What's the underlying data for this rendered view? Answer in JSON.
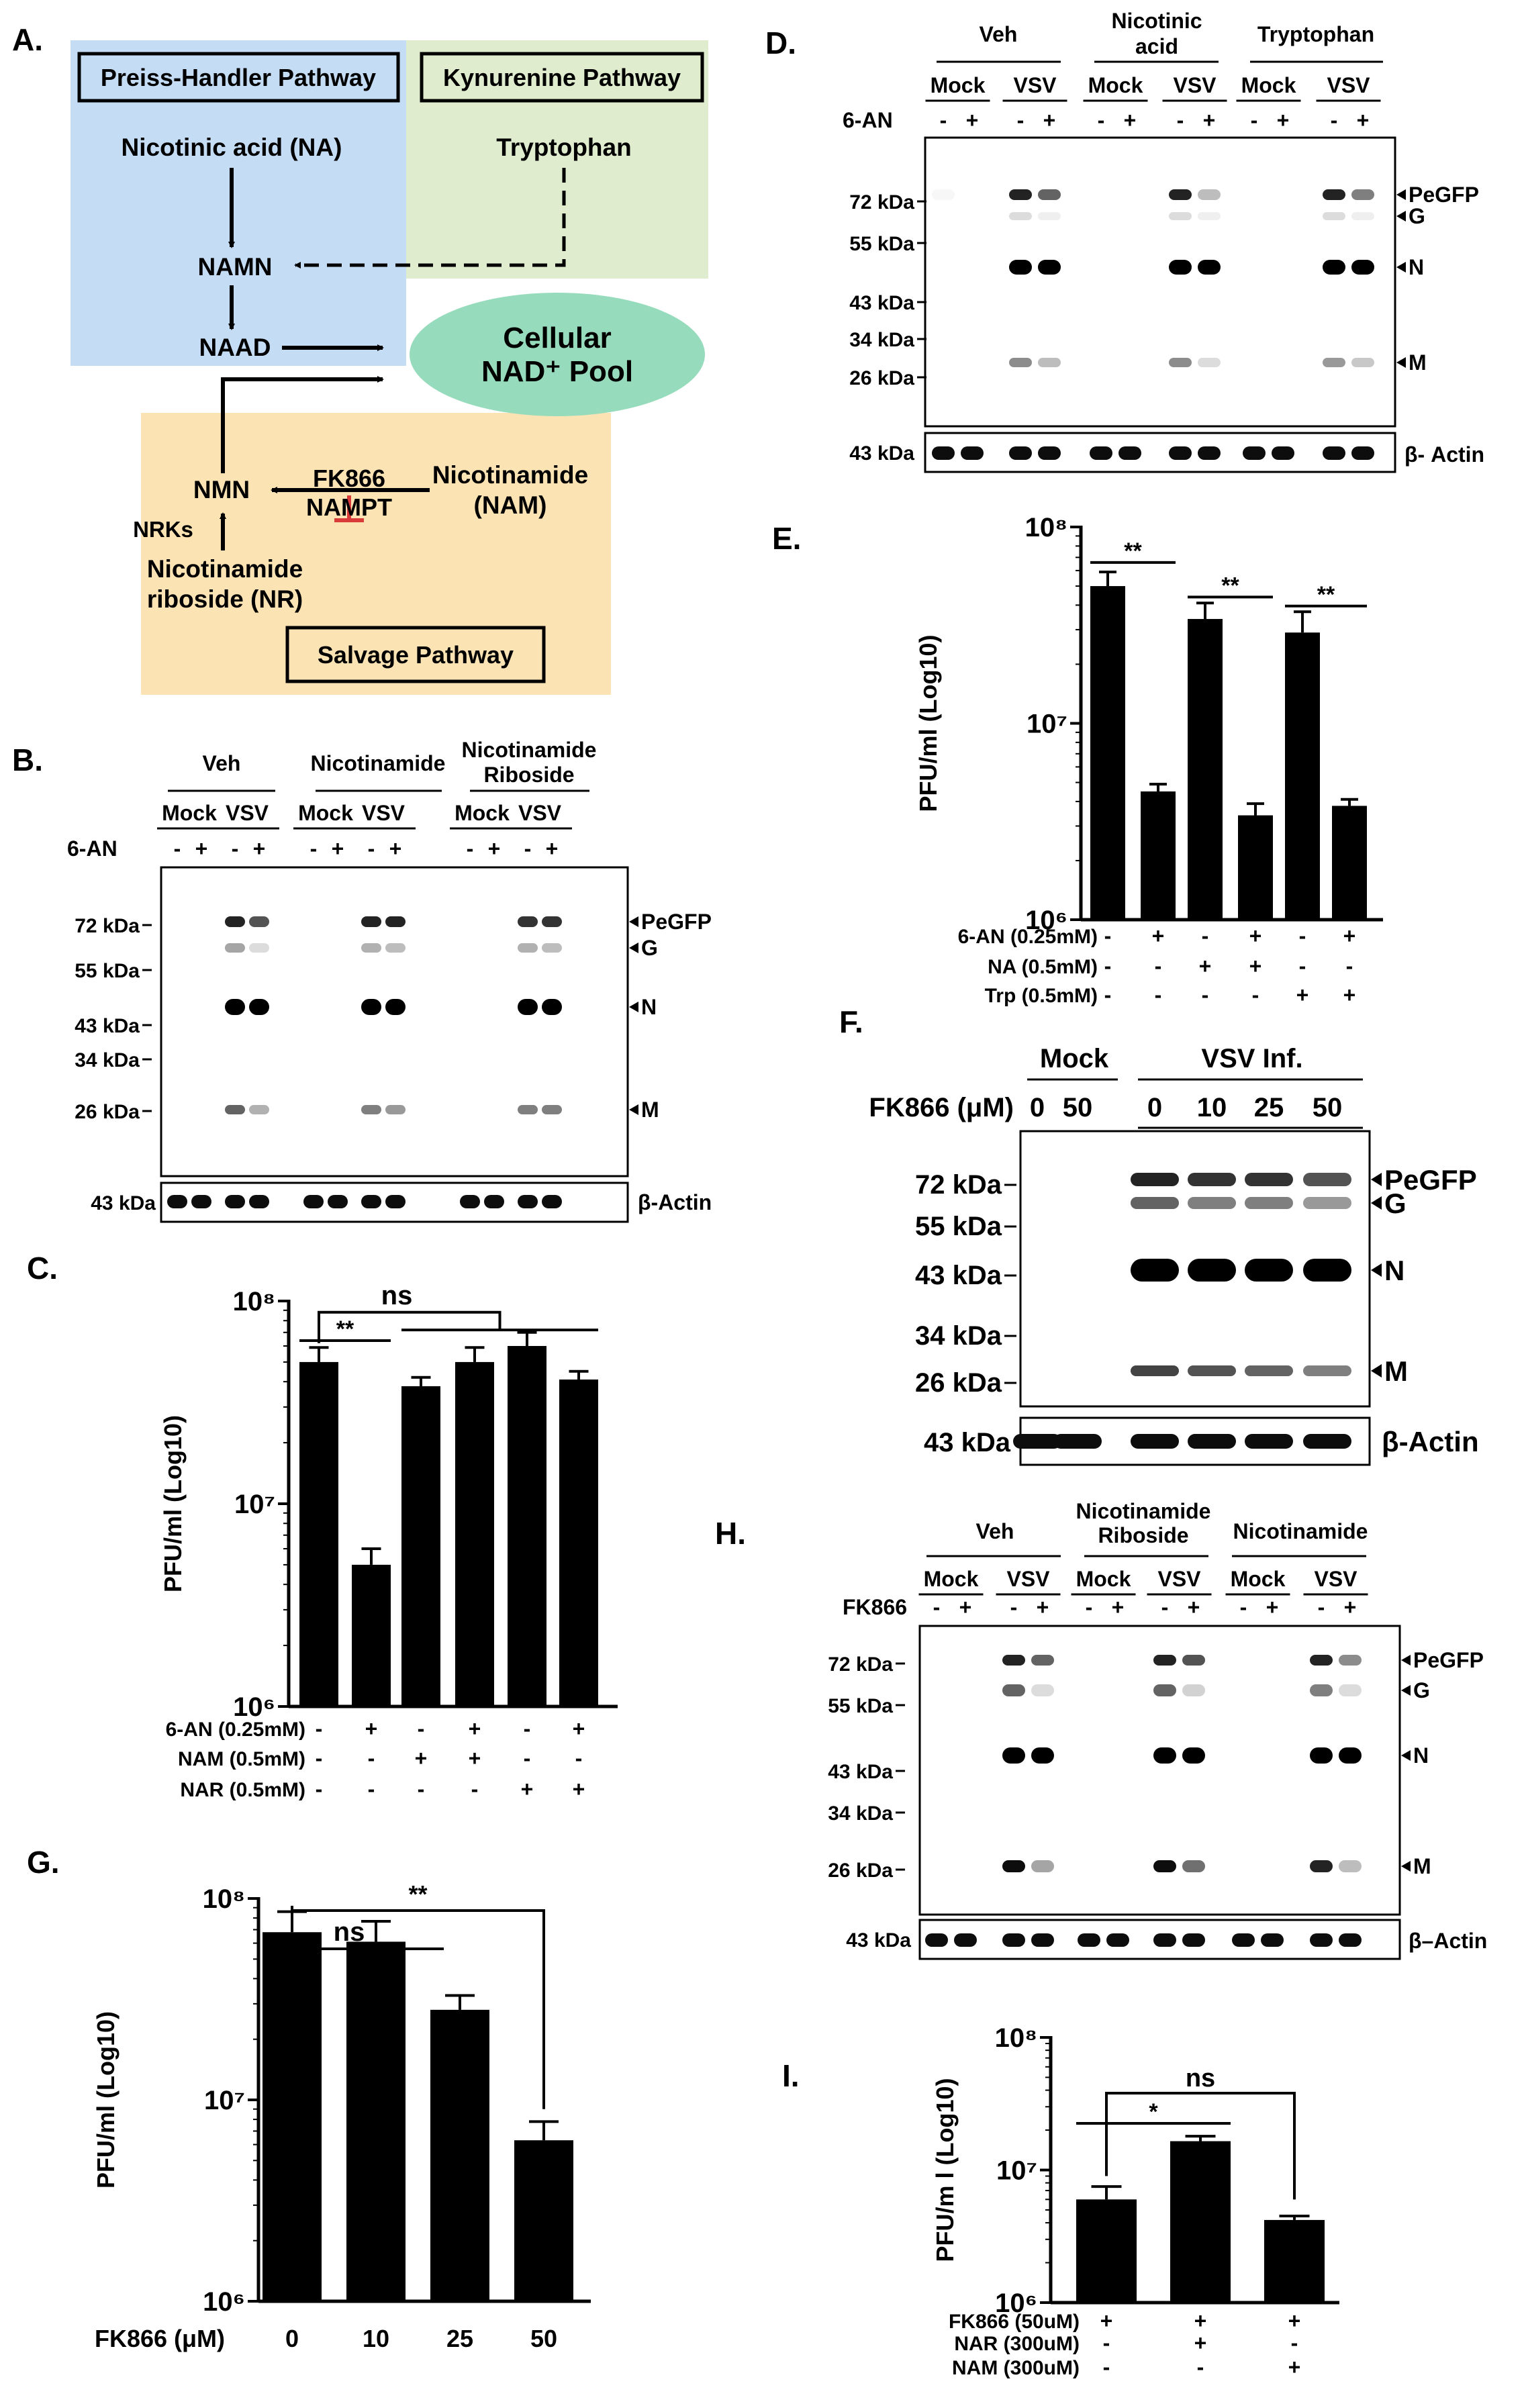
{
  "panels": {
    "A": {
      "label": "A.",
      "preiss_title": "Preiss-Handler Pathway",
      "kyn_title": "Kynurenine Pathway",
      "salvage_title": "Salvage Pathway",
      "na": "Nicotinic acid (NA)",
      "trp": "Tryptophan",
      "namn": "NAMN",
      "naad": "NAAD",
      "pool_line1": "Cellular",
      "pool_line2": "NAD⁺ Pool",
      "fk866": "FK866",
      "nmn": "NMN",
      "nampt": "NAMPT",
      "nam_line1": "Nicotinamide",
      "nam_line2": "(NAM)",
      "nrks": "NRKs",
      "nr_line1": "Nicotinamide",
      "nr_line2": "riboside (NR)",
      "colors": {
        "preiss": "#c5dcf5",
        "kyn": "#dfeccd",
        "salvage": "#fbe3b4",
        "pool": "#96dcbc",
        "inhibit": "#d93b3b"
      }
    },
    "B": {
      "label": "B.",
      "groups": [
        "Veh",
        "Nicotinamide",
        "Nicotinamide",
        "Riboside"
      ],
      "conditions": [
        "Mock",
        "VSV",
        "Mock",
        "VSV",
        "Mock",
        "VSV"
      ],
      "treatment_label": "6-AN",
      "signs": [
        "-",
        "+",
        "-",
        "+",
        "-",
        "+",
        "-",
        "+",
        "-",
        "+",
        "-",
        "+"
      ],
      "markers": [
        "72 kDa",
        "55 kDa",
        "43 kDa",
        "34 kDa",
        "26 kDa"
      ],
      "bands": [
        "PeGFP",
        "G",
        "N",
        "M"
      ],
      "actin_marker": "43 kDa",
      "actin_label": "β-Actin"
    },
    "D": {
      "label": "D.",
      "groups": [
        "Veh",
        "Nicotinic",
        "acid",
        "Tryptophan"
      ],
      "conditions": [
        "Mock",
        "VSV",
        "Mock",
        "VSV",
        "Mock",
        "VSV"
      ],
      "treatment_label": "6-AN",
      "signs": [
        "-",
        "+",
        "-",
        "+",
        "-",
        "+",
        "-",
        "+",
        "-",
        "+",
        "-",
        "+"
      ],
      "markers": [
        "72 kDa",
        "55 kDa",
        "43 kDa",
        "34 kDa",
        "26 kDa"
      ],
      "bands": [
        "PeGFP",
        "G",
        "N",
        "M"
      ],
      "actin_marker": "43 kDa",
      "actin_label": "β- Actin"
    },
    "F": {
      "label": "F.",
      "groups": [
        "Mock",
        "VSV Inf."
      ],
      "dose_label": "FK866 (μM)",
      "doses": [
        "0",
        "50",
        "0",
        "10",
        "25",
        "50"
      ],
      "markers": [
        "72 kDa",
        "55 kDa",
        "43 kDa",
        "34 kDa",
        "26 kDa"
      ],
      "bands": [
        "PeGFP",
        "G",
        "N",
        "M"
      ],
      "actin_marker": "43 kDa",
      "actin_label": "β-Actin"
    },
    "H": {
      "label": "H.",
      "groups": [
        "Veh",
        "Nicotinamide",
        "Riboside",
        "Nicotinamide"
      ],
      "conditions": [
        "Mock",
        "VSV",
        "Mock",
        "VSV",
        "Mock",
        "VSV"
      ],
      "treatment_label": "FK866",
      "signs": [
        "-",
        "+",
        "-",
        "+",
        "-",
        "+",
        "-",
        "+",
        "-",
        "+",
        "-",
        "+"
      ],
      "markers": [
        "72 kDa",
        "55 kDa",
        "43 kDa",
        "34 kDa",
        "26 kDa"
      ],
      "bands": [
        "PeGFP",
        "G",
        "N",
        "M"
      ],
      "actin_marker": "43 kDa",
      "actin_label": "β–Actin"
    }
  },
  "chart_data": [
    {
      "panel": "C.",
      "type": "bar",
      "ylabel": "PFU/ml (Log10)",
      "yscale": "log",
      "ylim": [
        1000000,
        100000000
      ],
      "ytick_labels": [
        "10⁶",
        "10⁷",
        "10⁸"
      ],
      "values": [
        50000000,
        5000000,
        38000000,
        50000000,
        60000000,
        41000000
      ],
      "errors": [
        9000000,
        1000000,
        4000000,
        9000000,
        10000000,
        4000000
      ],
      "rows": [
        {
          "label": "6-AN (0.25mM)",
          "signs": [
            "-",
            "+",
            "-",
            "+",
            "-",
            "+"
          ]
        },
        {
          "label": "NAM (0.5mM)",
          "signs": [
            "-",
            "-",
            "+",
            "+",
            "-",
            "-"
          ]
        },
        {
          "label": "NAR (0.5mM)",
          "signs": [
            "-",
            "-",
            "-",
            "-",
            "+",
            "+"
          ]
        }
      ],
      "annotations": [
        "**",
        "ns"
      ]
    },
    {
      "panel": "E.",
      "type": "bar",
      "ylabel": "PFU/ml (Log10)",
      "yscale": "log",
      "ylim": [
        1000000,
        100000000
      ],
      "ytick_labels": [
        "10⁶",
        "10⁷",
        "10⁸"
      ],
      "values": [
        50000000,
        4500000,
        34000000,
        3400000,
        29000000,
        3800000
      ],
      "errors": [
        9000000,
        400000,
        7000000,
        500000,
        8000000,
        300000
      ],
      "rows": [
        {
          "label": "6-AN (0.25mM)",
          "signs": [
            "-",
            "+",
            "-",
            "+",
            "-",
            "+"
          ]
        },
        {
          "label": "NA (0.5mM)",
          "signs": [
            "-",
            "-",
            "+",
            "+",
            "-",
            "-"
          ]
        },
        {
          "label": "Trp (0.5mM)",
          "signs": [
            "-",
            "-",
            "-",
            "-",
            "+",
            "+"
          ]
        }
      ],
      "annotations": [
        "**",
        "**",
        "**"
      ]
    },
    {
      "panel": "G.",
      "type": "bar",
      "ylabel": "PFU/ml (Log10)",
      "yscale": "log",
      "ylim": [
        1000000,
        100000000
      ],
      "ytick_labels": [
        "10⁶",
        "10⁷",
        "10⁸"
      ],
      "xlabel": "FK866 (μM)",
      "categories": [
        "0",
        "10",
        "25",
        "50"
      ],
      "values": [
        68000000,
        61000000,
        28000000,
        6300000
      ],
      "errors": [
        18000000,
        16000000,
        5000000,
        1500000
      ],
      "annotations": [
        "**",
        "ns"
      ]
    },
    {
      "panel": "I.",
      "type": "bar",
      "ylabel": "PFU/m l (Log10)",
      "yscale": "log",
      "ylim": [
        1000000,
        100000000
      ],
      "ytick_labels": [
        "10⁶",
        "10⁷",
        "10⁸"
      ],
      "values": [
        6000000,
        16500000,
        4200000
      ],
      "errors": [
        1500000,
        1500000,
        300000
      ],
      "rows": [
        {
          "label": "FK866 (50uM)",
          "signs": [
            "+",
            "+",
            "+"
          ]
        },
        {
          "label": "NAR (300uM)",
          "signs": [
            "-",
            "+",
            "-"
          ]
        },
        {
          "label": "NAM (300uM)",
          "signs": [
            "-",
            "-",
            "+"
          ]
        }
      ],
      "annotations": [
        "*",
        "ns"
      ]
    }
  ]
}
